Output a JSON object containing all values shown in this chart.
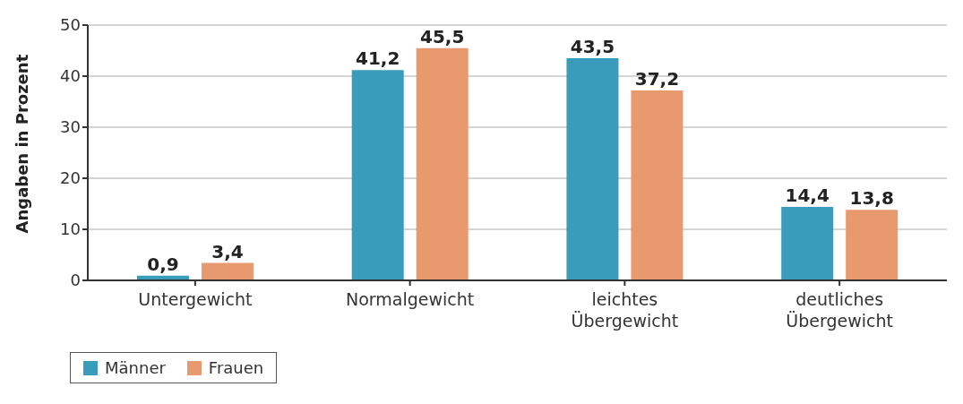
{
  "chart_data": {
    "type": "bar",
    "ylabel": "Angaben in Prozent",
    "categories": [
      "Untergewicht",
      "Normalgewicht",
      "leichtes Übergewicht",
      "deutliches Übergewicht"
    ],
    "series": [
      {
        "name": "Männer",
        "color": "#3a9cbb",
        "values": [
          0.9,
          41.2,
          43.5,
          14.4
        ],
        "value_labels": [
          "0,9",
          "41,2",
          "43,5",
          "14,4"
        ]
      },
      {
        "name": "Frauen",
        "color": "#e9996e",
        "values": [
          3.4,
          45.5,
          37.2,
          13.8
        ],
        "value_labels": [
          "3,4",
          "45,5",
          "37,2",
          "13,8"
        ]
      }
    ],
    "ylim": [
      0,
      50
    ],
    "yticks": [
      0,
      10,
      20,
      30,
      40,
      50
    ],
    "grid": "y",
    "legend": "bottom left"
  }
}
